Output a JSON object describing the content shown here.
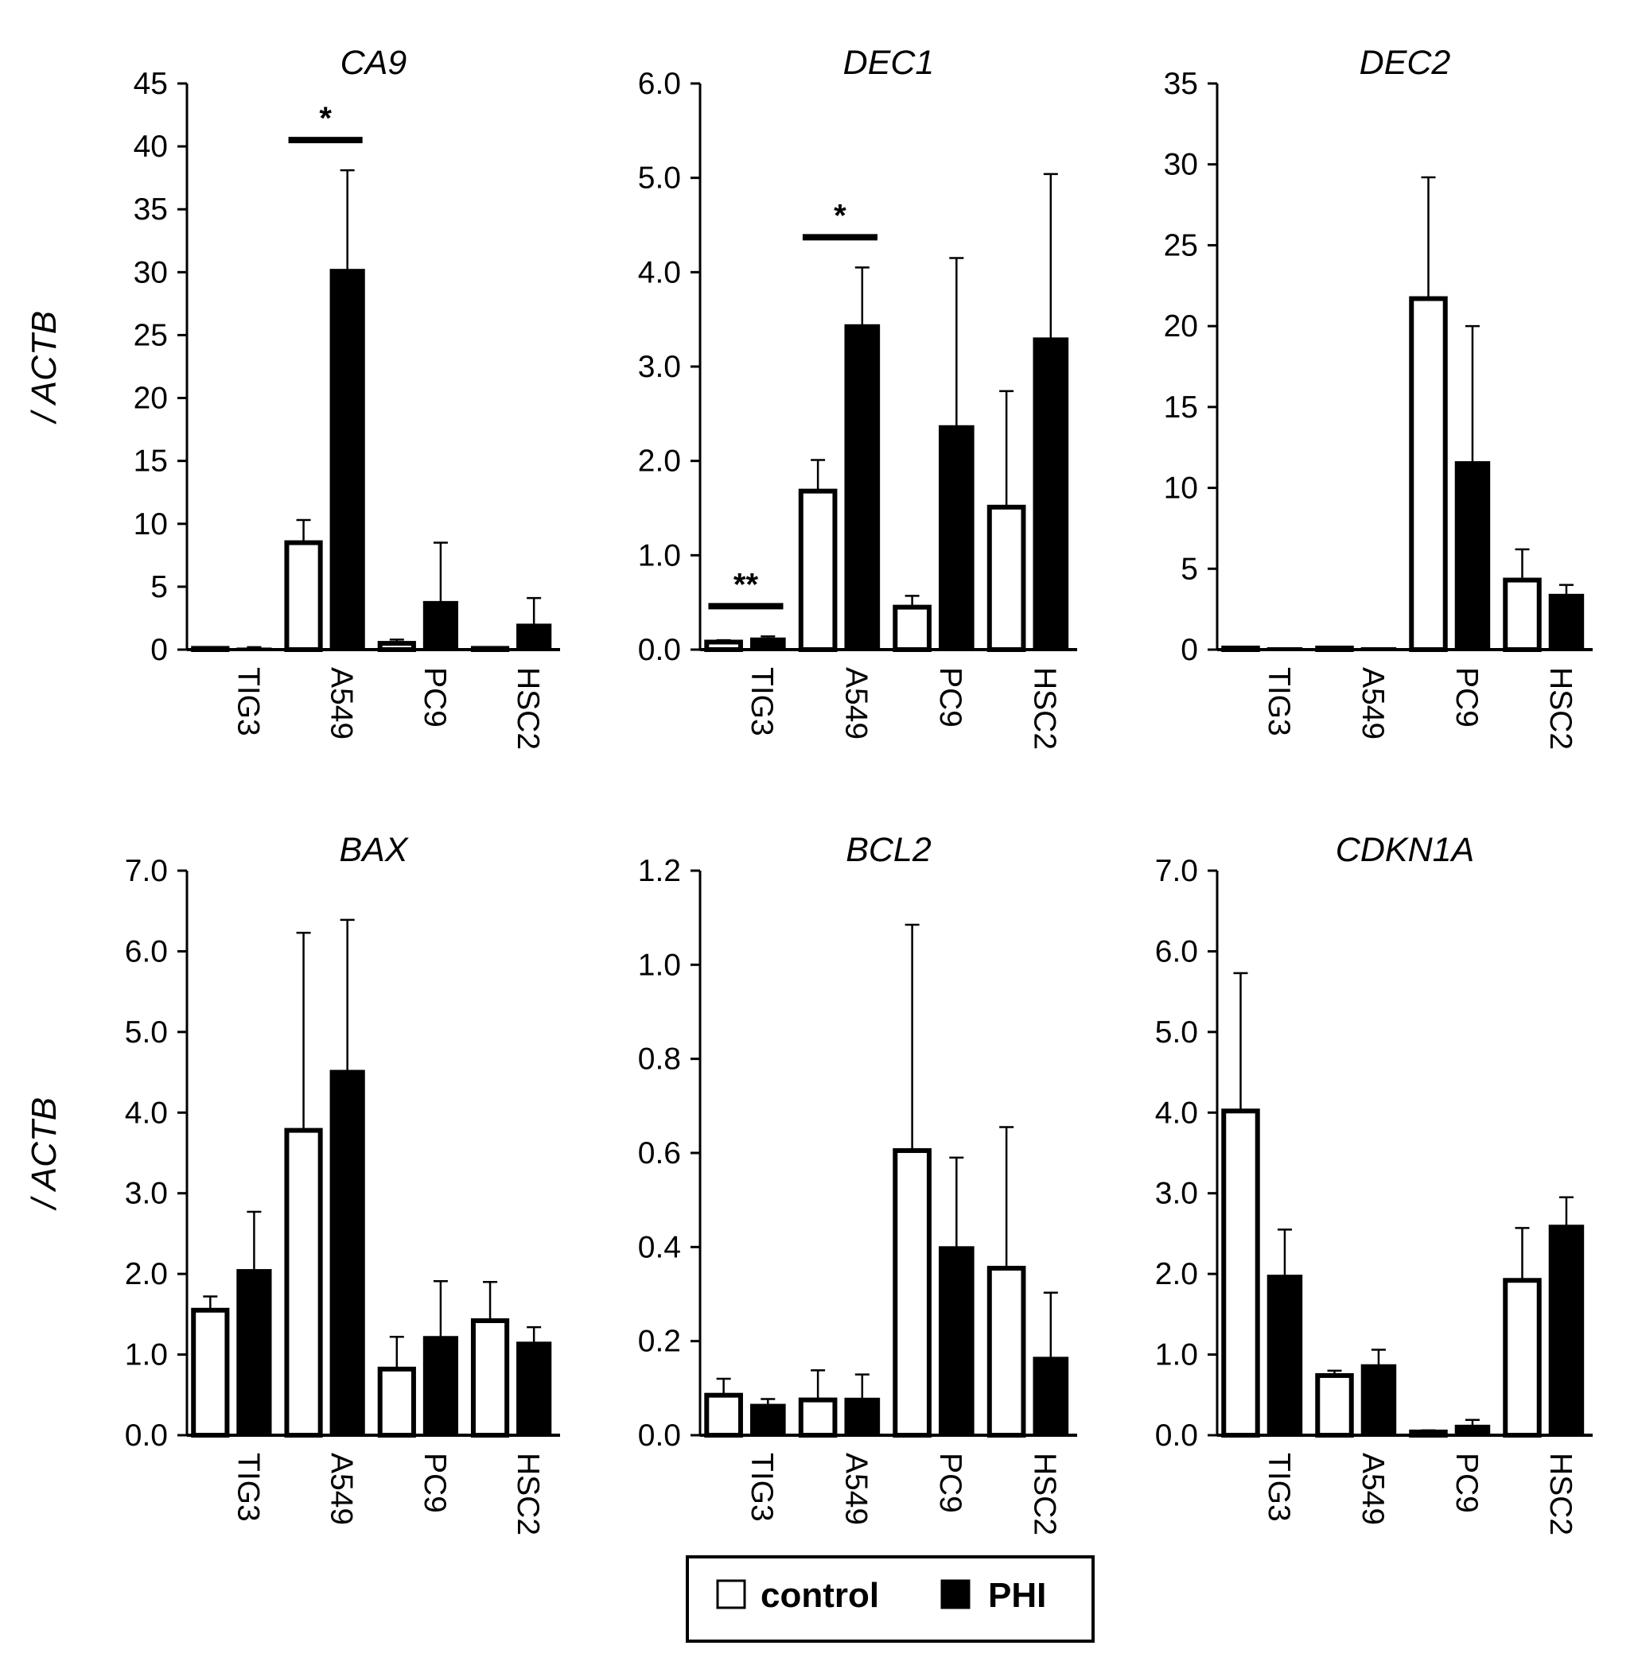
{
  "chart_data": [
    {
      "type": "bar",
      "title": "CA9",
      "ylabel": "/ ACTB",
      "ylim": [
        0,
        45
      ],
      "yticks": [
        "0",
        "5",
        "10",
        "15",
        "20",
        "25",
        "30",
        "35",
        "40",
        "45"
      ],
      "categories": [
        "TIG3",
        "A549",
        "PC9",
        "HSC2"
      ],
      "series": [
        {
          "name": "control",
          "values": [
            0.1,
            8.5,
            0.5,
            0.1
          ],
          "errors": [
            0.1,
            1.8,
            0.3,
            0.1
          ]
        },
        {
          "name": "PHI",
          "values": [
            0.1,
            30.2,
            3.8,
            2.0
          ],
          "errors": [
            0.1,
            7.9,
            4.7,
            2.1
          ]
        }
      ],
      "significance": [
        {
          "category": "A549",
          "label": "*"
        }
      ]
    },
    {
      "type": "bar",
      "title": "DEC1",
      "ylabel": "",
      "ylim": [
        0,
        6
      ],
      "yticks": [
        "0.0",
        "1.0",
        "2.0",
        "3.0",
        "4.0",
        "5.0",
        "6.0"
      ],
      "categories": [
        "TIG3",
        "A549",
        "PC9",
        "HSC2"
      ],
      "series": [
        {
          "name": "control",
          "values": [
            0.08,
            1.68,
            0.45,
            1.51
          ],
          "errors": [
            0.02,
            0.33,
            0.12,
            1.23
          ]
        },
        {
          "name": "PHI",
          "values": [
            0.12,
            3.44,
            2.37,
            3.3
          ],
          "errors": [
            0.02,
            0.61,
            1.78,
            1.74
          ]
        }
      ],
      "significance": [
        {
          "category": "TIG3",
          "label": "**"
        },
        {
          "category": "A549",
          "label": "*"
        }
      ]
    },
    {
      "type": "bar",
      "title": "DEC2",
      "ylabel": "",
      "ylim": [
        0,
        35
      ],
      "yticks": [
        "0",
        "5",
        "10",
        "15",
        "20",
        "25",
        "30",
        "35"
      ],
      "categories": [
        "TIG3",
        "A549",
        "PC9",
        "HSC2"
      ],
      "series": [
        {
          "name": "control",
          "values": [
            0.1,
            0.1,
            21.7,
            4.3
          ],
          "errors": [
            0,
            0,
            7.5,
            1.9
          ]
        },
        {
          "name": "PHI",
          "values": [
            0.1,
            0.1,
            11.6,
            3.4
          ],
          "errors": [
            0,
            0,
            8.4,
            0.6
          ]
        }
      ],
      "significance": []
    },
    {
      "type": "bar",
      "title": "BAX",
      "ylabel": "/ ACTB",
      "ylim": [
        0,
        7
      ],
      "yticks": [
        "0.0",
        "1.0",
        "2.0",
        "3.0",
        "4.0",
        "5.0",
        "6.0",
        "7.0"
      ],
      "categories": [
        "TIG3",
        "A549",
        "PC9",
        "HSC2"
      ],
      "series": [
        {
          "name": "control",
          "values": [
            1.55,
            3.78,
            0.82,
            1.42
          ],
          "errors": [
            0.17,
            2.45,
            0.4,
            0.48
          ]
        },
        {
          "name": "PHI",
          "values": [
            2.05,
            4.52,
            1.22,
            1.15
          ],
          "errors": [
            0.72,
            1.87,
            0.69,
            0.19
          ]
        }
      ],
      "significance": []
    },
    {
      "type": "bar",
      "title": "BCL2",
      "ylabel": "",
      "ylim": [
        0,
        1.2
      ],
      "yticks": [
        "0.0",
        "0.2",
        "0.4",
        "0.6",
        "0.8",
        "1.0",
        "1.2"
      ],
      "categories": [
        "TIG3",
        "A549",
        "PC9",
        "HSC2"
      ],
      "series": [
        {
          "name": "control",
          "values": [
            0.085,
            0.075,
            0.605,
            0.355
          ],
          "errors": [
            0.035,
            0.063,
            0.48,
            0.3
          ]
        },
        {
          "name": "PHI",
          "values": [
            0.065,
            0.078,
            0.4,
            0.165
          ],
          "errors": [
            0.012,
            0.051,
            0.19,
            0.138
          ]
        }
      ],
      "significance": []
    },
    {
      "type": "bar",
      "title": "CDKN1A",
      "ylabel": "",
      "ylim": [
        0,
        7
      ],
      "yticks": [
        "0.0",
        "1.0",
        "2.0",
        "3.0",
        "4.0",
        "5.0",
        "6.0",
        "7.0"
      ],
      "categories": [
        "TIG3",
        "A549",
        "PC9",
        "HSC2"
      ],
      "series": [
        {
          "name": "control",
          "values": [
            4.02,
            0.74,
            0.04,
            1.92
          ],
          "errors": [
            1.71,
            0.06,
            0.02,
            0.65
          ]
        },
        {
          "name": "PHI",
          "values": [
            1.98,
            0.87,
            0.12,
            2.6
          ],
          "errors": [
            0.57,
            0.19,
            0.07,
            0.35
          ]
        }
      ],
      "significance": []
    }
  ],
  "legend": {
    "items": [
      {
        "label": "control",
        "color": "#ffffff"
      },
      {
        "label": "PHI",
        "color": "#000000"
      }
    ]
  }
}
